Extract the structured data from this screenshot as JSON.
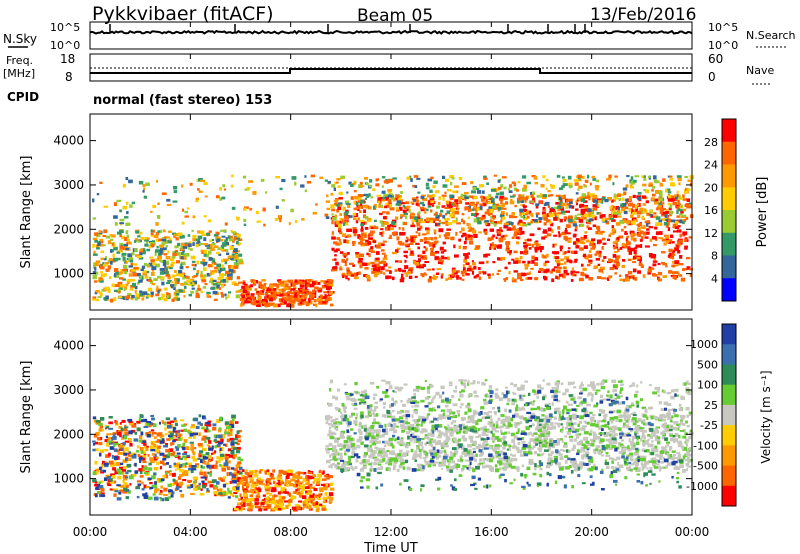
{
  "header": {
    "title": "Pykkvibaer (fitACF)",
    "beam": "Beam 05",
    "date": "13/Feb/2016",
    "cpid_label": "CPID",
    "cpid_value": "normal (fast stereo) 153"
  },
  "noise_panel": {
    "left_label": "N.Sky",
    "right_label": "N.Search",
    "left_ticks": [
      "10^5",
      "10^0"
    ],
    "right_ticks": [
      "10^5",
      "10^0"
    ]
  },
  "freq_panel": {
    "left_label_1": "Freq.",
    "left_label_2": "[MHz]",
    "right_label": "Nave",
    "left_ticks": [
      "18",
      "8"
    ],
    "right_ticks": [
      "60",
      "0"
    ]
  },
  "chart_data": [
    {
      "type": "heatmap",
      "name": "power",
      "ylabel": "Slant Range [km]",
      "ylim": [
        180,
        4600
      ],
      "yticks": [
        "4000",
        "3000",
        "2000",
        "1000"
      ],
      "colorbar_label": "Power [dB]",
      "colorbar_ticks": [
        "28",
        "24",
        "20",
        "16",
        "12",
        "8",
        "4"
      ],
      "colorbar_colors": [
        "#ff0000",
        "#ff6600",
        "#ff9900",
        "#ffcc00",
        "#99cc33",
        "#339966",
        "#336699",
        "#0000ff"
      ]
    },
    {
      "type": "heatmap",
      "name": "velocity",
      "ylabel": "Slant Range [km]",
      "ylim": [
        180,
        4600
      ],
      "yticks": [
        "4000",
        "3000",
        "2000",
        "1000"
      ],
      "colorbar_label": "Velocity [m s⁻¹]",
      "colorbar_ticks": [
        "1000",
        "500",
        "100",
        "25",
        "-25",
        "-100",
        "-500",
        "-1000"
      ],
      "colorbar_colors": [
        "#1f3fa5",
        "#3a6fb0",
        "#2e8b57",
        "#66cc33",
        "#c8c8c0",
        "#ffcc00",
        "#ff9900",
        "#ff6600",
        "#ff0000"
      ]
    }
  ],
  "xaxis": {
    "label": "Time UT",
    "ticks": [
      "00:00",
      "04:00",
      "08:00",
      "12:00",
      "16:00",
      "20:00",
      "00:00"
    ]
  }
}
